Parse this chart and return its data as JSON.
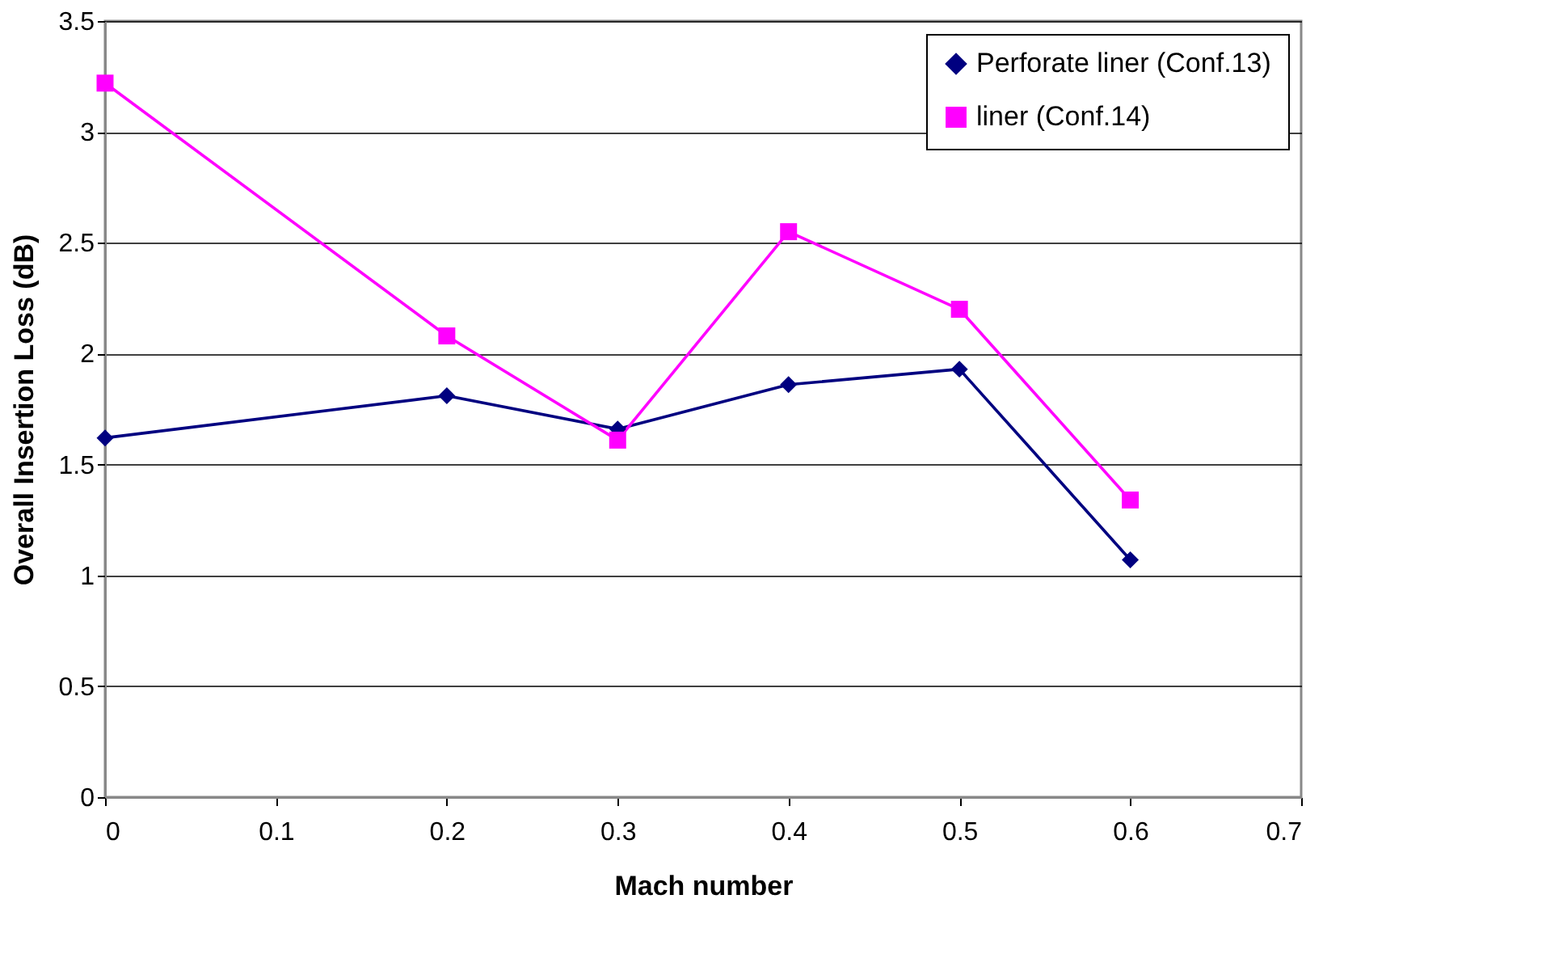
{
  "chart_data": {
    "type": "line",
    "xlabel": "Mach number",
    "ylabel": "Overall Insertion Loss (dB)",
    "x": [
      0,
      0.2,
      0.3,
      0.4,
      0.5,
      0.6
    ],
    "series": [
      {
        "name": "Perforate liner (Conf.13)",
        "color": "#000080",
        "marker": "diamond",
        "values": [
          1.62,
          1.81,
          1.66,
          1.86,
          1.93,
          1.07
        ]
      },
      {
        "name": "liner (Conf.14)",
        "color": "#ff00ff",
        "marker": "square",
        "values": [
          3.22,
          2.08,
          1.61,
          2.55,
          2.2,
          1.34
        ]
      }
    ],
    "xlim": [
      0,
      0.7
    ],
    "xticks": [
      0,
      0.1,
      0.2,
      0.3,
      0.4,
      0.5,
      0.6,
      0.7
    ],
    "ylim": [
      0,
      3.5
    ],
    "yticks": [
      0,
      0.5,
      1,
      1.5,
      2,
      2.5,
      3,
      3.5
    ],
    "grid": "y",
    "legend": "top right",
    "line_style": "solid"
  }
}
